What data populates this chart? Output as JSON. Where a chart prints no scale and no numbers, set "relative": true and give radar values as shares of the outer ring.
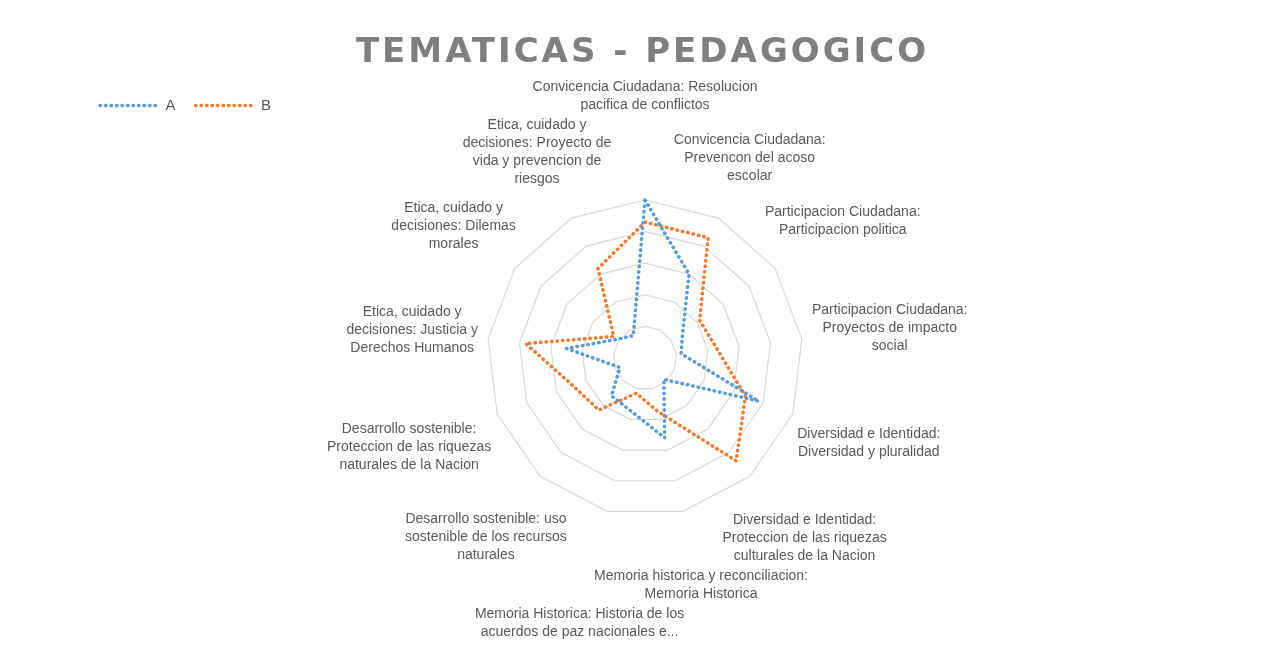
{
  "chart_data": {
    "type": "radar",
    "title": "TEMATICAS - PEDAGOGICO",
    "relative": true,
    "legend": "top left",
    "line_style": "dotted",
    "marker": "none",
    "grid": true,
    "categories": [
      "Convicencia Ciudadana: Resolucion pacifica de conflictos",
      "Convicencia Ciudadana: Prevencon del acoso escolar",
      "Participacion Ciudadana: Participacion politica",
      "Participacion Ciudadana: Proyectos de impacto social",
      "Diversidad e Identidad: Diversidad y pluralidad",
      "Diversidad e Identidad: Proteccion de las riquezas culturales de la Nacion",
      "Memoria historica y reconciliacion: Memoria Historica",
      "Memoria Historica: Historia de los acuerdos de paz nacionales e...",
      "Desarrollo sostenible: uso sostenible de los recursos naturales",
      "Desarrollo sostenible: Proteccion de las riquezas naturales de la Nacion",
      "Etica, cuidado y decisiones: Justicia y Derechos Humanos",
      "Etica, cuidado y decisiones: Dilemas morales",
      "Etica, cuidado y decisiones: Proyecto de vida y prevencion de riesgos"
    ],
    "series": [
      {
        "name": "A",
        "color": "#5b9bd5",
        "values": [
          1.0,
          0.6,
          0.29,
          0.23,
          0.77,
          0.18,
          0.52,
          0.35,
          0.32,
          0.17,
          0.5,
          0.21,
          0.16
        ]
      },
      {
        "name": "B",
        "color": "#ed7d31",
        "values": [
          0.86,
          0.86,
          0.42,
          0.46,
          0.68,
          0.87,
          0.35,
          0.23,
          0.44,
          0.49,
          0.76,
          0.24,
          0.64
        ]
      }
    ]
  }
}
